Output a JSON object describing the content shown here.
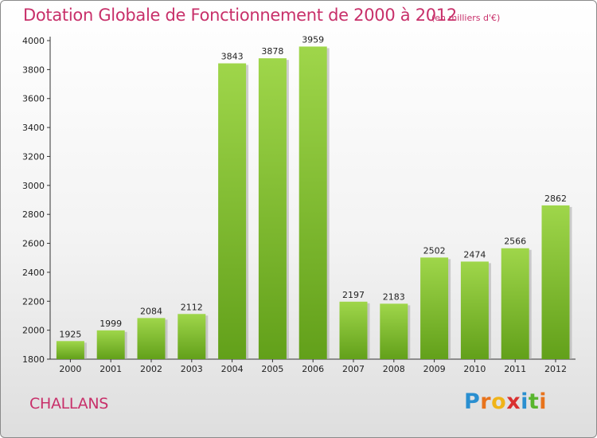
{
  "header": {
    "title": "Dotation Globale de Fonctionnement de 2000 à 2012",
    "unit": "(en milliers d'€)"
  },
  "footer": {
    "commune": "CHALLANS",
    "logo": {
      "text": "Proxiti",
      "letters": [
        "P",
        "r",
        "o",
        "x",
        "i",
        "t",
        "i"
      ],
      "colors": [
        "#2a8fd0",
        "#e8731c",
        "#f0b419",
        "#d93030",
        "#2a8fd0",
        "#58b52e",
        "#e8731c"
      ]
    }
  },
  "colors": {
    "title": "#c8306a",
    "bar_top": "#9fd64a",
    "bar_bottom": "#62a01a",
    "bar_shadow": "#a8a8a8",
    "axis": "#333333"
  },
  "chart_data": {
    "type": "bar",
    "title": "Dotation Globale de Fonctionnement de 2000 à 2012",
    "subtitle": "(en milliers d'€)",
    "xlabel": "",
    "ylabel": "",
    "categories": [
      "2000",
      "2001",
      "2002",
      "2003",
      "2004",
      "2005",
      "2006",
      "2007",
      "2008",
      "2009",
      "2010",
      "2011",
      "2012"
    ],
    "values": [
      1925,
      1999,
      2084,
      2112,
      3843,
      3878,
      3959,
      2197,
      2183,
      2502,
      2474,
      2566,
      2862
    ],
    "value_labels": [
      "1925",
      "1999",
      "2084",
      "2112",
      "3843",
      "3878",
      "3959",
      "2197",
      "2183",
      "2502",
      "2474",
      "2566",
      "2862"
    ],
    "ylim": [
      1800,
      4000
    ],
    "yticks": [
      1800,
      2000,
      2200,
      2400,
      2600,
      2800,
      3000,
      3200,
      3400,
      3600,
      3800,
      4000
    ],
    "ytick_labels": [
      "1800",
      "2000",
      "2200",
      "2400",
      "2600",
      "2800",
      "3000",
      "3200",
      "3400",
      "3600",
      "3800",
      "4000"
    ],
    "grid": false,
    "legend": "none"
  }
}
